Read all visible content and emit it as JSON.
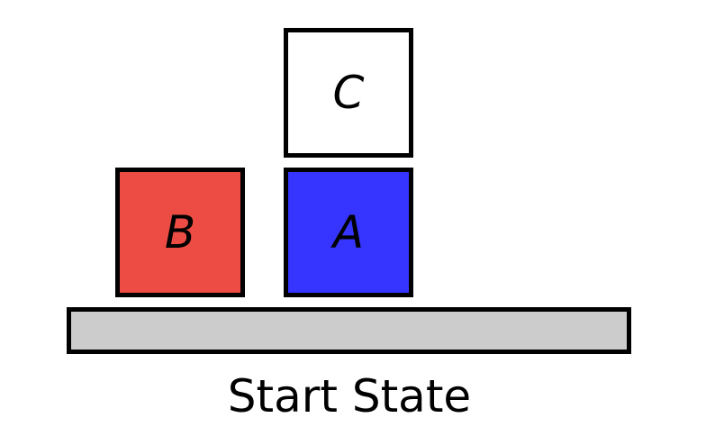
{
  "blocks": {
    "c": {
      "label": "C",
      "color": "#ffffff"
    },
    "b": {
      "label": "B",
      "color": "#ec4c43"
    },
    "a": {
      "label": "A",
      "color": "#3535ff"
    }
  },
  "table": {
    "color": "#cccccc"
  },
  "caption": "Start State"
}
